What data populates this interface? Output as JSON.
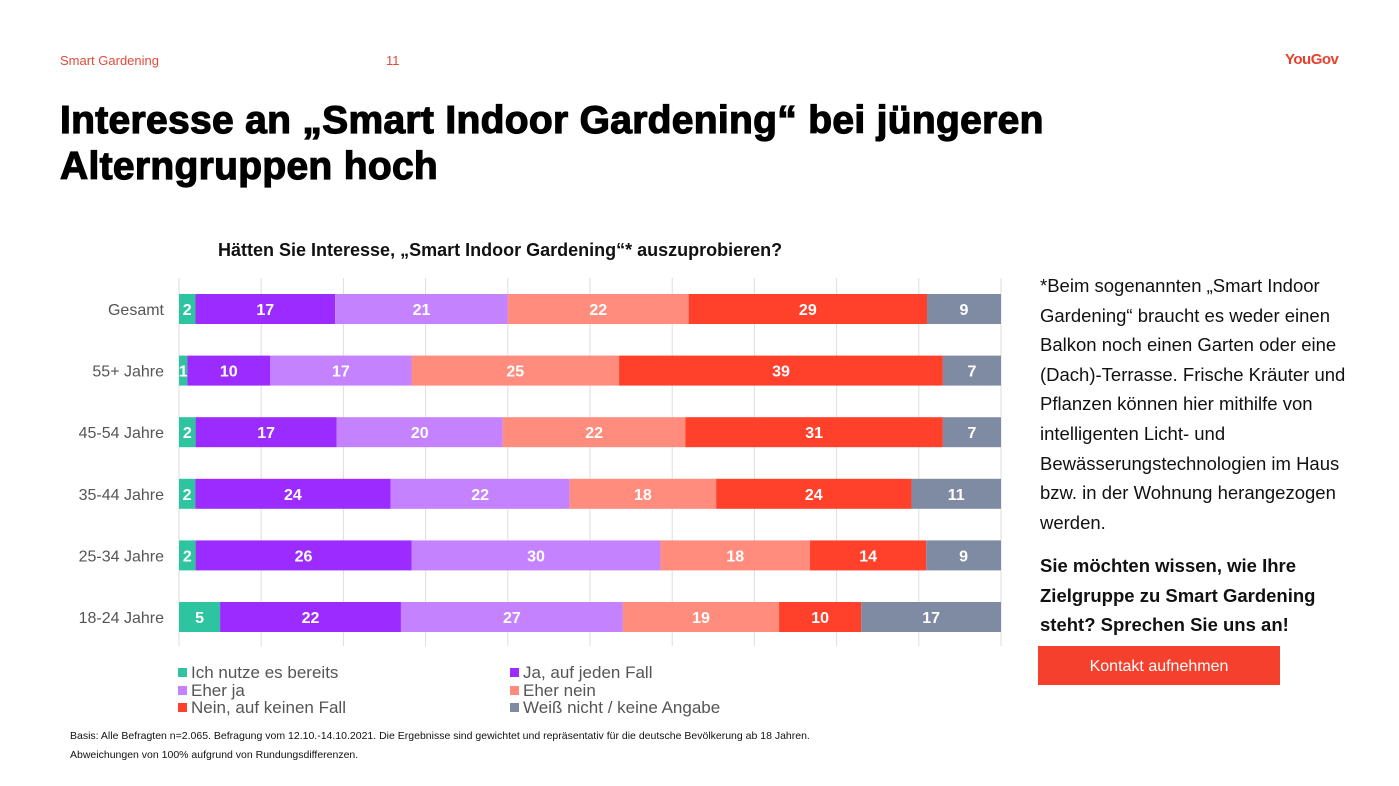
{
  "header": {
    "section": "Smart Gardening",
    "page_number": "11",
    "logo": "YouGov"
  },
  "title": "Interesse an „Smart Indoor Gardening“ bei jüngeren Alterngruppen hoch",
  "title_lines": [
    "Interesse an „Smart Indoor Gardening“ bei jüngeren",
    "Alterngruppen hoch"
  ],
  "colors": {
    "accent": "#e8402f",
    "button": "#f4402c"
  },
  "chart_data": {
    "type": "bar",
    "orientation": "horizontal-stacked-100",
    "title": "Hätten Sie Interesse, „Smart Indoor Gardening“* auszuprobieren?",
    "xlabel": "",
    "ylabel": "",
    "xlim": [
      0,
      100
    ],
    "grid": true,
    "legend_position": "bottom",
    "categories": [
      "Gesamt",
      "55+ Jahre",
      "45-54 Jahre",
      "35-44 Jahre",
      "25-34 Jahre",
      "18-24 Jahre"
    ],
    "series": [
      {
        "name": "Ich nutze es bereits",
        "color": "#2ec4a0",
        "values": [
          2,
          1,
          2,
          2,
          2,
          5
        ]
      },
      {
        "name": "Ja, auf jeden Fall",
        "color": "#9b2bff",
        "values": [
          17,
          10,
          17,
          24,
          26,
          22
        ]
      },
      {
        "name": "Eher ja",
        "color": "#c582ff",
        "values": [
          21,
          17,
          20,
          22,
          30,
          27
        ]
      },
      {
        "name": "Eher nein",
        "color": "#ff8c7c",
        "values": [
          22,
          25,
          22,
          18,
          18,
          19
        ]
      },
      {
        "name": "Nein, auf keinen Fall",
        "color": "#ff412c",
        "values": [
          29,
          39,
          31,
          24,
          14,
          10
        ]
      },
      {
        "name": "Weiß nicht / keine Angabe",
        "color": "#7f8aa3",
        "values": [
          9,
          7,
          7,
          11,
          9,
          17
        ]
      }
    ]
  },
  "footnote": {
    "line1": "Basis: Alle Befragten n=2.065. Befragung vom 12.10.-14.10.2021. Die Ergebnisse sind gewichtet und repräsentativ für die deutsche Bevölkerung ab 18 Jahren.",
    "line2": "Abweichungen von 100% aufgrund von Rundungsdifferenzen."
  },
  "sidebar": {
    "definition": "*Beim sogenannten „Smart Indoor Gardening“ braucht es weder einen Balkon noch einen Garten oder eine (Dach)-Terrasse. Frische Kräuter und Pflanzen können hier mithilfe von intelligenten Licht- und Bewässerungstechnologien im Haus bzw. in der Wohnung herangezogen werden.",
    "cta_text": "Sie möchten wissen, wie Ihre Zielgruppe zu Smart Gardening steht? Sprechen Sie uns an!",
    "cta_button": "Kontakt aufnehmen"
  }
}
